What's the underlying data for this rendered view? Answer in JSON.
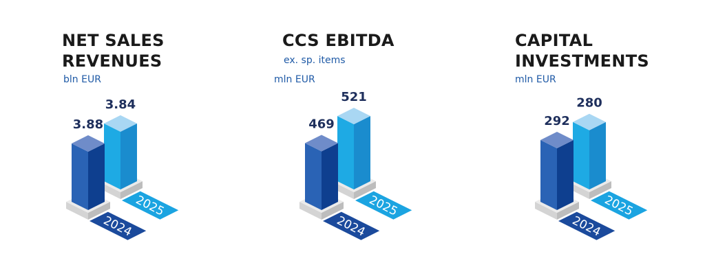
{
  "chart_data": [
    {
      "type": "bar",
      "title": "NET SALES REVENUES",
      "subtitle": "",
      "unit": "bln EUR",
      "categories": [
        "2024",
        "2025"
      ],
      "values": [
        3.88,
        3.84
      ],
      "value_labels": [
        "3.88",
        "3.84"
      ]
    },
    {
      "type": "bar",
      "title": "CCS EBITDA",
      "subtitle": "ex. sp. items",
      "unit": "mln EUR",
      "categories": [
        "2024",
        "2025"
      ],
      "values": [
        469,
        521
      ],
      "value_labels": [
        "469",
        "521"
      ]
    },
    {
      "type": "bar",
      "title": "CAPITAL INVESTMENTS",
      "subtitle": "",
      "unit": "mln EUR",
      "categories": [
        "2024",
        "2025"
      ],
      "values": [
        292,
        280
      ],
      "value_labels": [
        "292",
        "280"
      ]
    }
  ],
  "titles": [
    {
      "line1": "NET SALES",
      "line2": "REVENUES",
      "unit": "bln EUR"
    },
    {
      "line1": "CCS EBITDA",
      "sub": "ex. sp. items",
      "unit": "mln EUR"
    },
    {
      "line1": "CAPITAL",
      "line2": "INVESTMENTS",
      "unit": "mln EUR"
    }
  ],
  "colors": {
    "2024": {
      "top": "#6f8cc9",
      "left": "#2a63b5",
      "right": "#0e3f8f",
      "plate": "#1b4a9c"
    },
    "2025": {
      "top": "#a9d7f3",
      "left": "#1eaae4",
      "right": "#1a8cce",
      "plate": "#1ba4e1"
    },
    "pedestal": {
      "top": "#ebebeb",
      "left": "#d4d4d4",
      "right": "#bdbdbd"
    },
    "title": "#1a1a1a",
    "unit": "#1f5aa6",
    "value": "#1e2f5c"
  }
}
